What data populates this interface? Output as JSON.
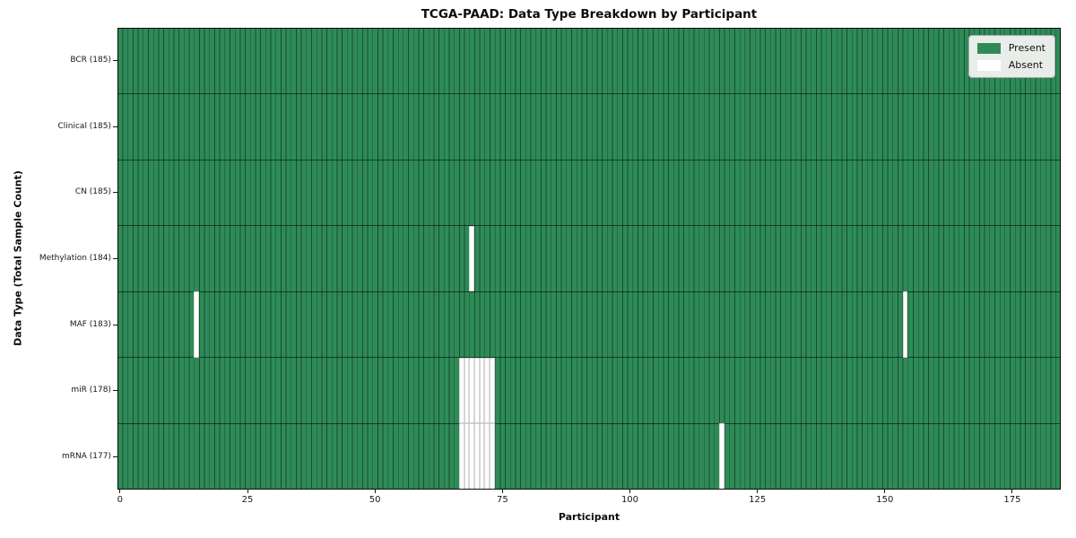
{
  "title": "TCGA-PAAD: Data Type Breakdown by Participant",
  "colors": {
    "present": "#2e8b57",
    "absent": "#ffffff",
    "cell_edge_on_green": "rgba(0,0,0,0.45)",
    "cell_edge_on_white": "#c4c4c4",
    "frame": "#0a0a0a",
    "legend_background": "#e9ede9",
    "figure_background": "#ffffff"
  },
  "chart_data": {
    "type": "heatmap",
    "title": "TCGA-PAAD: Data Type Breakdown by Participant",
    "xlabel": "Participant",
    "ylabel": "Data Type (Total Sample Count)",
    "n_participants": 185,
    "x_ticks": [
      0,
      25,
      50,
      75,
      100,
      125,
      150,
      175
    ],
    "x_range": [
      0,
      185
    ],
    "grid": false,
    "legend_position": "upper right",
    "legend": [
      {
        "label": "Present",
        "color": "#2e8b57"
      },
      {
        "label": "Absent",
        "color": "#ffffff"
      }
    ],
    "rows": [
      {
        "label": "BCR (185)",
        "data_type": "BCR",
        "present_count": 185,
        "absent_count": 0,
        "absent_participants": []
      },
      {
        "label": "Clinical (185)",
        "data_type": "Clinical",
        "present_count": 185,
        "absent_count": 0,
        "absent_participants": []
      },
      {
        "label": "CN (185)",
        "data_type": "CN",
        "present_count": 185,
        "absent_count": 0,
        "absent_participants": []
      },
      {
        "label": "Methylation (184)",
        "data_type": "Methylation",
        "present_count": 184,
        "absent_count": 1,
        "absent_participants": [
          69
        ]
      },
      {
        "label": "MAF (183)",
        "data_type": "MAF",
        "present_count": 183,
        "absent_count": 2,
        "absent_participants": [
          15,
          154
        ]
      },
      {
        "label": "miR (178)",
        "data_type": "miR",
        "present_count": 178,
        "absent_count": 7,
        "absent_participants": [
          67,
          68,
          69,
          70,
          71,
          72,
          73
        ]
      },
      {
        "label": "mRNA (177)",
        "data_type": "mRNA",
        "present_count": 177,
        "absent_count": 8,
        "absent_participants": [
          67,
          68,
          69,
          70,
          71,
          72,
          73,
          118
        ]
      }
    ]
  }
}
